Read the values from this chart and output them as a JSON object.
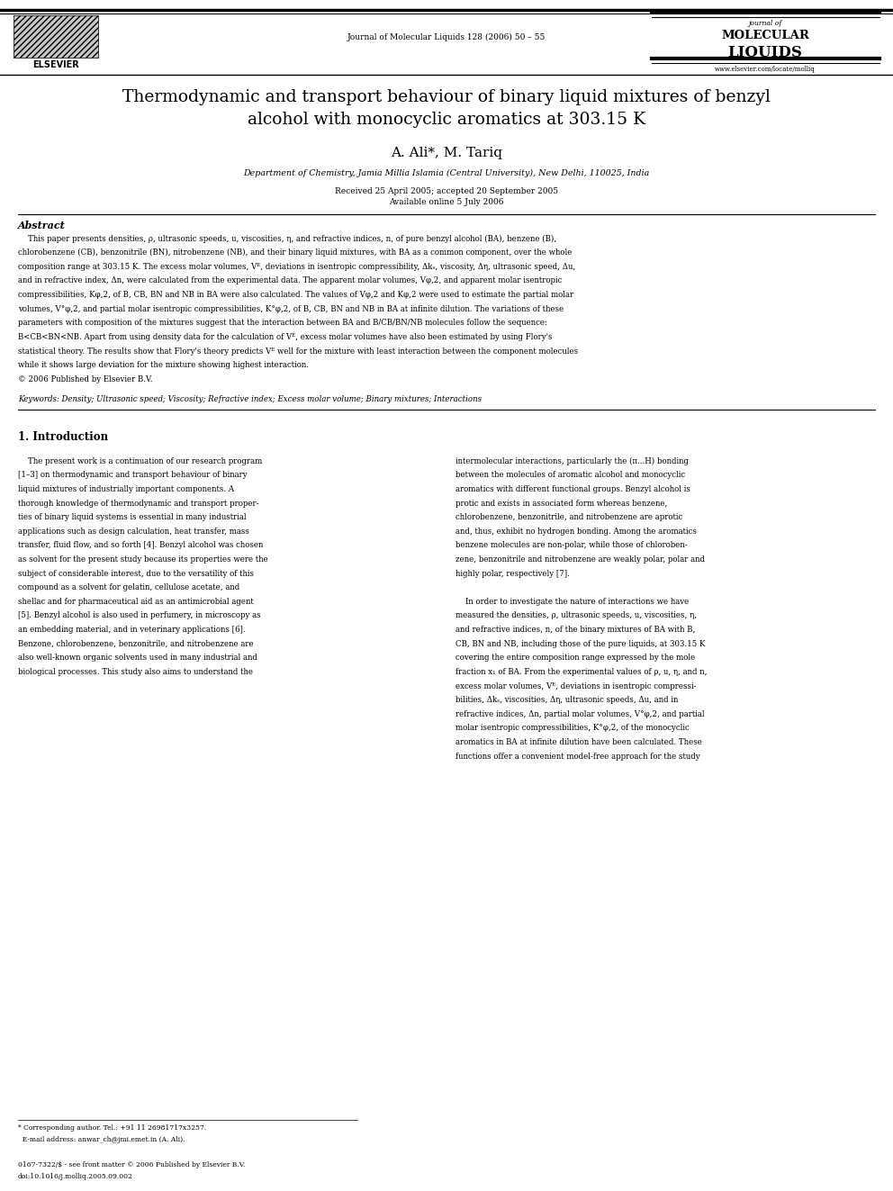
{
  "page_bg": "#ffffff",
  "page_width": 9.92,
  "page_height": 13.23,
  "dpi": 100,
  "header": {
    "journal_center": "Journal of Molecular Liquids 128 (2006) 50 – 55",
    "elsevier_text": "ELSEVIER",
    "journal_name_line1": "journal of",
    "journal_name_line2": "MOLECULAR",
    "journal_name_line3": "LIQUIDS",
    "website": "www.elsevier.com/locate/molliq"
  },
  "title": "Thermodynamic and transport behaviour of binary liquid mixtures of benzyl\nalcohol with monocyclic aromatics at 303.15 K",
  "authors": "A. Ali*, M. Tariq",
  "affiliation": "Department of Chemistry, Jamia Millia Islamia (Central University), New Delhi, 110025, India",
  "dates": "Received 25 April 2005; accepted 20 September 2005\nAvailable online 5 July 2006",
  "abstract_title": "Abstract",
  "abstract_lines": [
    "    This paper presents densities, ρ, ultrasonic speeds, u, viscosities, η, and refractive indices, n, of pure benzyl alcohol (BA), benzene (B),",
    "chlorobenzene (CB), benzonitrile (BN), nitrobenzene (NB), and their binary liquid mixtures, with BA as a common component, over the whole",
    "composition range at 303.15 K. The excess molar volumes, Vᴱ, deviations in isentropic compressibility, Δkₛ, viscosity, Δη, ultrasonic speed, Δu,",
    "and in refractive index, Δn, were calculated from the experimental data. The apparent molar volumes, Vφ,2, and apparent molar isentropic",
    "compressibilities, Kφ,2, of B, CB, BN and NB in BA were also calculated. The values of Vφ,2 and Kφ,2 were used to estimate the partial molar",
    "volumes, V°φ,2, and partial molar isentropic compressibilities, K°φ,2, of B, CB, BN and NB in BA at infinite dilution. The variations of these",
    "parameters with composition of the mixtures suggest that the interaction between BA and B/CB/BN/NB molecules follow the sequence:",
    "B<CB<BN<NB. Apart from using density data for the calculation of Vᴱ, excess molar volumes have also been estimated by using Flory's",
    "statistical theory. The results show that Flory's theory predicts Vᴱ well for the mixture with least interaction between the component molecules",
    "while it shows large deviation for the mixture showing highest interaction.",
    "© 2006 Published by Elsevier B.V."
  ],
  "keywords": "Keywords: Density; Ultrasonic speed; Viscosity; Refractive index; Excess molar volume; Binary mixtures; Interactions",
  "section1_title": "1. Introduction",
  "intro_left_lines": [
    "    The present work is a continuation of our research program",
    "[1–3] on thermodynamic and transport behaviour of binary",
    "liquid mixtures of industrially important components. A",
    "thorough knowledge of thermodynamic and transport proper-",
    "ties of binary liquid systems is essential in many industrial",
    "applications such as design calculation, heat transfer, mass",
    "transfer, fluid flow, and so forth [4]. Benzyl alcohol was chosen",
    "as solvent for the present study because its properties were the",
    "subject of considerable interest, due to the versatility of this",
    "compound as a solvent for gelatin, cellulose acetate, and",
    "shellac and for pharmaceutical aid as an antimicrobial agent",
    "[5]. Benzyl alcohol is also used in perfumery, in microscopy as",
    "an embedding material, and in veterinary applications [6].",
    "Benzene, chlorobenzene, benzonitrile, and nitrobenzene are",
    "also well-known organic solvents used in many industrial and",
    "biological processes. This study also aims to understand the"
  ],
  "intro_right_lines": [
    "intermolecular interactions, particularly the (π...H) bonding",
    "between the molecules of aromatic alcohol and monocyclic",
    "aromatics with different functional groups. Benzyl alcohol is",
    "protic and exists in associated form whereas benzene,",
    "chlorobenzene, benzonitrile, and nitrobenzene are aprotic",
    "and, thus, exhibit no hydrogen bonding. Among the aromatics",
    "benzene molecules are non-polar, while those of chloroben-",
    "zene, benzonitrile and nitrobenzene are weakly polar, polar and",
    "highly polar, respectively [7].",
    "",
    "    In order to investigate the nature of interactions we have",
    "measured the densities, ρ, ultrasonic speeds, u, viscosities, η,",
    "and refractive indices, n, of the binary mixtures of BA with B,",
    "CB, BN and NB, including those of the pure liquids, at 303.15 K",
    "covering the entire composition range expressed by the mole",
    "fraction x₁ of BA. From the experimental values of ρ, u, η, and n,",
    "excess molar volumes, Vᴱ, deviations in isentropic compressi-",
    "bilities, Δkₛ, viscosities, Δη, ultrasonic speeds, Δu, and in",
    "refractive indices, Δn, partial molar volumes, V°φ,2, and partial",
    "molar isentropic compressibilities, K°φ,2, of the monocyclic",
    "aromatics in BA at infinite dilution have been calculated. These",
    "functions offer a convenient model-free approach for the study"
  ],
  "footnote_lines": [
    "* Corresponding author. Tel.: +91 11 26981717x3257.",
    "  E-mail address: anwar_ch@jmi.emet.in (A. Ali)."
  ],
  "footer_lines": [
    "0167-7322/$ - see front matter © 2006 Published by Elsevier B.V.",
    "doi:10.1016/j.molliq.2005.09.002"
  ]
}
